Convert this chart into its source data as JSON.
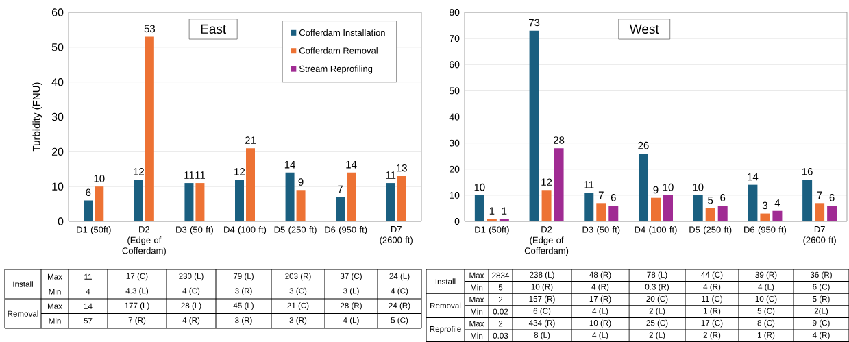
{
  "chart_data": [
    {
      "type": "bar",
      "title": "East",
      "ylabel": "Turbidity (FNU)",
      "categories": [
        "D1 (50ft)",
        "D2 (Edge of Cofferdam)",
        "D3 (50 ft)",
        "D4 (100 ft)",
        "D5 (250 ft)",
        "D6 (950 ft)",
        "D7 (2600 ft)"
      ],
      "series": [
        {
          "name": "Cofferdam Installation",
          "color": "#1a5f80",
          "values": [
            6,
            12,
            11,
            12,
            14,
            7,
            11
          ]
        },
        {
          "name": "Cofferdam Removal",
          "color": "#ed7234",
          "values": [
            10,
            53,
            11,
            21,
            9,
            14,
            13
          ]
        },
        {
          "name": "Stream Reprofiling",
          "color": "#a02b93",
          "values": [
            null,
            null,
            null,
            null,
            null,
            null,
            null
          ]
        }
      ],
      "ylim": [
        0,
        60
      ],
      "yticks": [
        0,
        10,
        20,
        30,
        40,
        50,
        60
      ],
      "grid": "y",
      "legend": "top right",
      "data_labels": true,
      "annotations": [
        "Install",
        "Max",
        "11",
        "17 (C)",
        "230 (L)",
        "79 (L)",
        "203 (R)",
        "37 (C)",
        "24 (L)",
        "Min",
        "4",
        "4.3 (L)",
        "4 (C)",
        "3 (R)",
        "3 (C)",
        "3 (L)",
        "4 (C)",
        "Removal",
        "Max",
        "14",
        "177 (L)",
        "28 (L)",
        "45 (L)",
        "21 (C)",
        "28 (R)",
        "24 (R)",
        "Min",
        "57",
        "7 (R)",
        "4 (R)",
        "3 (R)",
        "3 (R)",
        "4 (L)",
        "5 (C)"
      ]
    },
    {
      "type": "bar",
      "title": "West",
      "categories": [
        "D1 (50ft)",
        "D2 (Edge of Cofferdam)",
        "D3 (50 ft)",
        "D4 (100 ft)",
        "D5 (250 ft)",
        "D6 (950 ft)",
        "D7 (2600 ft)"
      ],
      "series": [
        {
          "color": "#1a5f80",
          "values": [
            10,
            73,
            11,
            26,
            10,
            14,
            16
          ]
        },
        {
          "color": "#ed7234",
          "values": [
            1,
            12,
            7,
            9,
            5,
            3,
            7
          ]
        },
        {
          "color": "#a02b93",
          "values": [
            1,
            28,
            6,
            10,
            6,
            4,
            6
          ]
        }
      ],
      "ylim": [
        0,
        80
      ],
      "yticks": [
        0,
        10,
        20,
        30,
        40,
        50,
        60,
        70,
        80
      ],
      "grid": "y",
      "data_labels": true,
      "annotations": [
        "Install",
        "Max",
        "2834",
        "238 (L)",
        "48 (R)",
        "78 (L)",
        "44 (C)",
        "39 (R)",
        "36 (R)",
        "Min",
        "5",
        "10 (R)",
        "4 (R)",
        "0.3 (R)",
        "4 (R)",
        "4 (L)",
        "6 (C)",
        "Removal",
        "Max",
        "2",
        "157 (R)",
        "17 (R)",
        "20 (C)",
        "11 (C)",
        "10 (C)",
        "5 (R)",
        "Min",
        "0.02",
        "6 (C)",
        "4 (L)",
        "2 (L)",
        "1 (R)",
        "5 (C)",
        "2(L)",
        "Reprofile",
        "Max",
        "2",
        "434 (R)",
        "10 (R)",
        "25 (C)",
        "17 (C)",
        "8 (C)",
        "9 (C)",
        "Min",
        "0.03",
        "8 (L)",
        "4 (L)",
        "2 (L)",
        "2 (R)",
        "1 (R)",
        "4 (R)"
      ]
    }
  ]
}
